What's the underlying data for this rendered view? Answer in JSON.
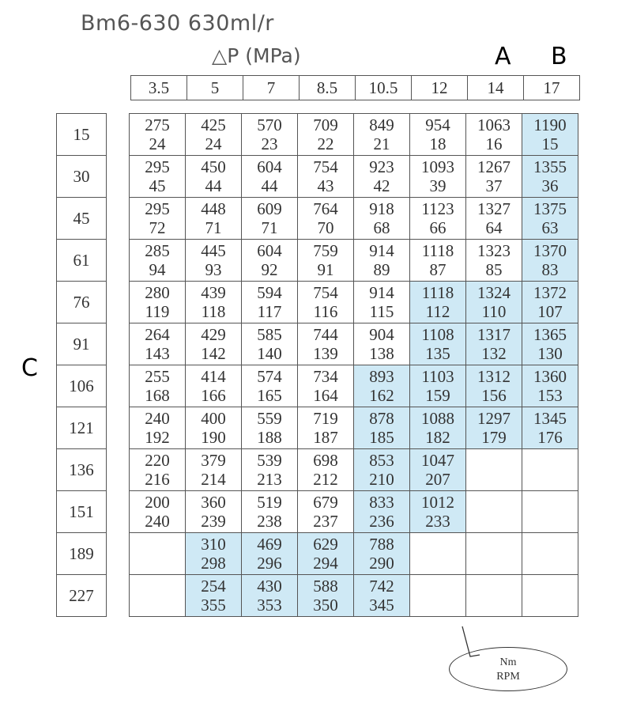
{
  "title": "Bm6-630  630ml/r",
  "delta_p_label": "△P   (MPa)",
  "label_a": "A",
  "label_b": "B",
  "label_c": "C",
  "pressures": [
    "3.5",
    "5",
    "7",
    "8.5",
    "10.5",
    "12",
    "14",
    "17"
  ],
  "speeds": [
    "15",
    "30",
    "45",
    "61",
    "76",
    "91",
    "106",
    "121",
    "136",
    "151",
    "189",
    "227"
  ],
  "cells": [
    [
      [
        "275",
        "24"
      ],
      [
        "425",
        "24"
      ],
      [
        "570",
        "23"
      ],
      [
        "709",
        "22"
      ],
      [
        "849",
        "21"
      ],
      [
        "954",
        "18"
      ],
      [
        "1063",
        "16"
      ],
      [
        "1190",
        "15"
      ]
    ],
    [
      [
        "295",
        "45"
      ],
      [
        "450",
        "44"
      ],
      [
        "604",
        "44"
      ],
      [
        "754",
        "43"
      ],
      [
        "923",
        "42"
      ],
      [
        "1093",
        "39"
      ],
      [
        "1267",
        "37"
      ],
      [
        "1355",
        "36"
      ]
    ],
    [
      [
        "295",
        "72"
      ],
      [
        "448",
        "71"
      ],
      [
        "609",
        "71"
      ],
      [
        "764",
        "70"
      ],
      [
        "918",
        "68"
      ],
      [
        "1123",
        "66"
      ],
      [
        "1327",
        "64"
      ],
      [
        "1375",
        "63"
      ]
    ],
    [
      [
        "285",
        "94"
      ],
      [
        "445",
        "93"
      ],
      [
        "604",
        "92"
      ],
      [
        "759",
        "91"
      ],
      [
        "914",
        "89"
      ],
      [
        "1118",
        "87"
      ],
      [
        "1323",
        "85"
      ],
      [
        "1370",
        "83"
      ]
    ],
    [
      [
        "280",
        "119"
      ],
      [
        "439",
        "118"
      ],
      [
        "594",
        "117"
      ],
      [
        "754",
        "116"
      ],
      [
        "914",
        "115"
      ],
      [
        "1118",
        "112"
      ],
      [
        "1324",
        "110"
      ],
      [
        "1372",
        "107"
      ]
    ],
    [
      [
        "264",
        "143"
      ],
      [
        "429",
        "142"
      ],
      [
        "585",
        "140"
      ],
      [
        "744",
        "139"
      ],
      [
        "904",
        "138"
      ],
      [
        "1108",
        "135"
      ],
      [
        "1317",
        "132"
      ],
      [
        "1365",
        "130"
      ]
    ],
    [
      [
        "255",
        "168"
      ],
      [
        "414",
        "166"
      ],
      [
        "574",
        "165"
      ],
      [
        "734",
        "164"
      ],
      [
        "893",
        "162"
      ],
      [
        "1103",
        "159"
      ],
      [
        "1312",
        "156"
      ],
      [
        "1360",
        "153"
      ]
    ],
    [
      [
        "240",
        "192"
      ],
      [
        "400",
        "190"
      ],
      [
        "559",
        "188"
      ],
      [
        "719",
        "187"
      ],
      [
        "878",
        "185"
      ],
      [
        "1088",
        "182"
      ],
      [
        "1297",
        "179"
      ],
      [
        "1345",
        "176"
      ]
    ],
    [
      [
        "220",
        "216"
      ],
      [
        "379",
        "214"
      ],
      [
        "539",
        "213"
      ],
      [
        "698",
        "212"
      ],
      [
        "853",
        "210"
      ],
      [
        "1047",
        "207"
      ],
      null,
      null
    ],
    [
      [
        "200",
        "240"
      ],
      [
        "360",
        "239"
      ],
      [
        "519",
        "238"
      ],
      [
        "679",
        "237"
      ],
      [
        "833",
        "236"
      ],
      [
        "1012",
        "233"
      ],
      null,
      null
    ],
    [
      null,
      [
        "310",
        "298"
      ],
      [
        "469",
        "296"
      ],
      [
        "629",
        "294"
      ],
      [
        "788",
        "290"
      ],
      null,
      null,
      null
    ],
    [
      null,
      [
        "254",
        "355"
      ],
      [
        "430",
        "353"
      ],
      [
        "588",
        "350"
      ],
      [
        "742",
        "345"
      ],
      null,
      null,
      null
    ]
  ],
  "shaded": [
    [
      7
    ],
    [
      7
    ],
    [
      7
    ],
    [
      7
    ],
    [
      5,
      6,
      7
    ],
    [
      5,
      6,
      7
    ],
    [
      4,
      5,
      6,
      7
    ],
    [
      4,
      5,
      6,
      7
    ],
    [
      4,
      5
    ],
    [
      4,
      5
    ],
    [
      1,
      2,
      3,
      4
    ],
    [
      1,
      2,
      3,
      4
    ]
  ],
  "shade_color": "#cfe9f5",
  "legend": {
    "line1": "Nm",
    "line2": "RPM"
  }
}
